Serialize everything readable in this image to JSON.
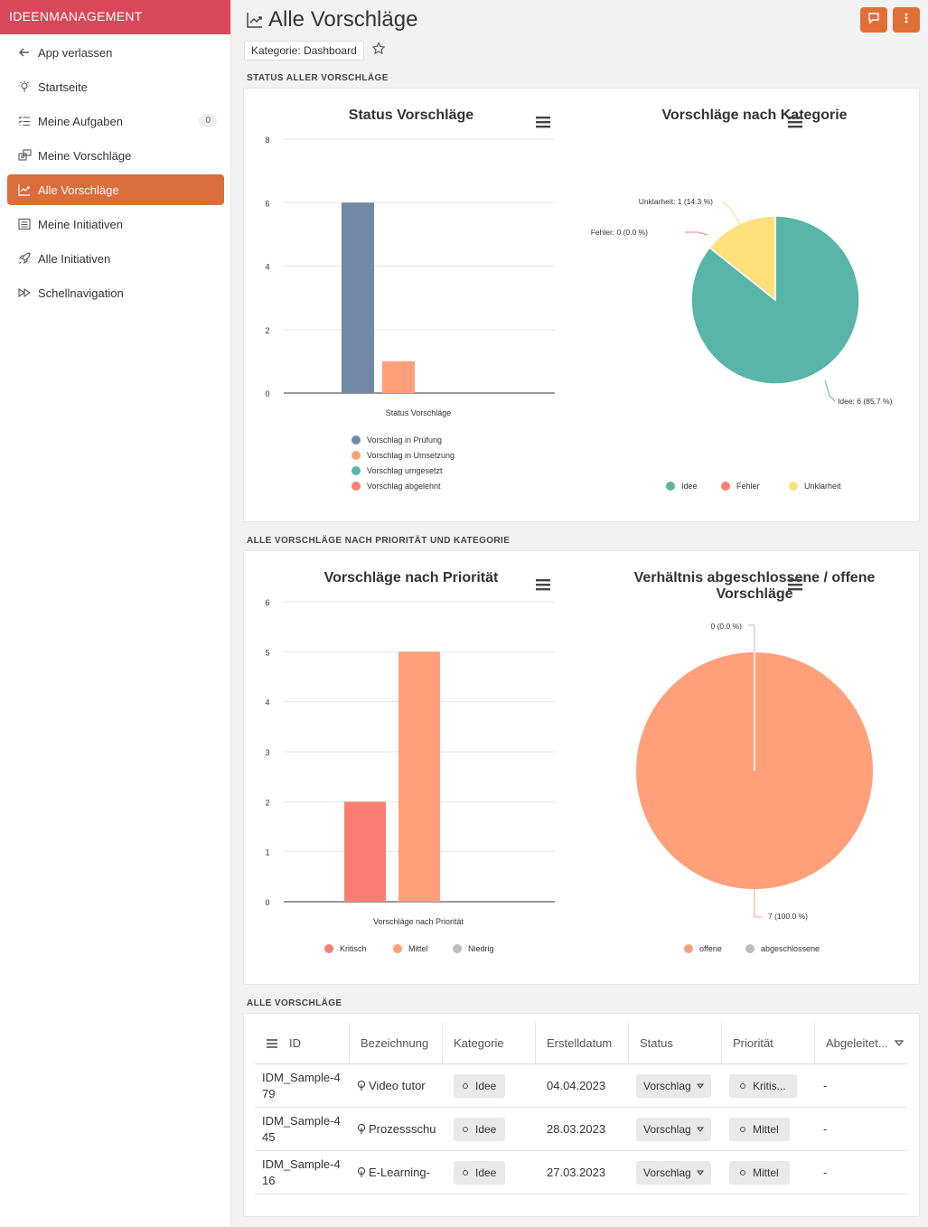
{
  "app": {
    "name": "IDEENMANAGEMENT"
  },
  "sidebar": {
    "items": [
      {
        "label": "App verlassen",
        "icon": "arrow-left-icon"
      },
      {
        "label": "Startseite",
        "icon": "lightbulb-icon"
      },
      {
        "label": "Meine Aufgaben",
        "icon": "tasks-icon",
        "badge": "0"
      },
      {
        "label": "Meine Vorschläge",
        "icon": "suggestions-icon"
      },
      {
        "label": "Alle Vorschläge",
        "icon": "chart-line-icon",
        "active": true
      },
      {
        "label": "Meine Initiativen",
        "icon": "list-icon"
      },
      {
        "label": "Alle Initiativen",
        "icon": "rocket-icon"
      },
      {
        "label": "Schellnavigation",
        "icon": "fast-forward-icon"
      }
    ]
  },
  "header": {
    "title": "Alle Vorschläge",
    "category_chip": "Kategorie: Dashboard"
  },
  "sections": {
    "status": "STATUS ALLER VORSCHLÄGE",
    "priority": "ALLE VORSCHLÄGE NACH PRIORITÄT UND KATEGORIE",
    "all": "ALLE VORSCHLÄGE"
  },
  "colors": {
    "accent": "#db6d3c",
    "brand": "#d9475b",
    "blue": "#7189a5",
    "orange": "#ffa07a",
    "teal": "#58b5a8",
    "red": "#fa7f72",
    "yellow": "#ffe07a",
    "gray": "#bdbdbd"
  },
  "chart_data": [
    {
      "type": "bar",
      "title": "Status Vorschläge",
      "xlabel": "Status Vorschläge",
      "ylim": [
        0,
        8
      ],
      "yticks": [
        "0",
        "2",
        "4",
        "6",
        "8"
      ],
      "series": [
        {
          "name": "Vorschlag in Prüfung",
          "values": [
            6
          ],
          "color": "#7189a5"
        },
        {
          "name": "Vorschlag in Umsetzung",
          "values": [
            1
          ],
          "color": "#ffa07a"
        },
        {
          "name": "Vorschlag umgesetzt",
          "values": [
            0
          ],
          "color": "#58b5a8"
        },
        {
          "name": "Vorschlag abgelehnt",
          "values": [
            0
          ],
          "color": "#fa7f72"
        }
      ],
      "legend": "bottom"
    },
    {
      "type": "pie",
      "title": "Vorschläge nach Kategorie",
      "slices": [
        {
          "name": "Idee",
          "value": 6,
          "label": "Idee: 6 (85.7 %)",
          "color": "#58b5a8"
        },
        {
          "name": "Fehler",
          "value": 0,
          "label": "Fehler: 0 (0.0 %)",
          "color": "#fa7f72"
        },
        {
          "name": "Unklarheit",
          "value": 1,
          "label": "Unklarheit: 1 (14.3 %)",
          "color": "#ffe07a"
        }
      ],
      "legend": "bottom"
    },
    {
      "type": "bar",
      "title": "Vorschläge nach Priorität",
      "xlabel": "Vorschläge nach Priorität",
      "ylim": [
        0,
        6
      ],
      "yticks": [
        "0",
        "1",
        "2",
        "3",
        "4",
        "5",
        "6"
      ],
      "series": [
        {
          "name": "Kritisch",
          "values": [
            2
          ],
          "color": "#fa7f72"
        },
        {
          "name": "Mittel",
          "values": [
            5
          ],
          "color": "#ffa07a"
        },
        {
          "name": "Niedrig",
          "values": [
            0
          ],
          "color": "#bdbdbd"
        }
      ],
      "legend": "bottom"
    },
    {
      "type": "pie",
      "title_lines": [
        "Verhältnis abgeschlossene / offene",
        "Vorschläge"
      ],
      "slices": [
        {
          "name": "offene",
          "value": 7,
          "label": "7 (100.0 %)",
          "color": "#ffa07a"
        },
        {
          "name": "abgeschlossene",
          "value": 0,
          "label": "0 (0.0 %)",
          "color": "#bdbdbd"
        }
      ],
      "legend": "bottom"
    }
  ],
  "table": {
    "columns": [
      "ID",
      "Bezeichnung",
      "Kategorie",
      "Erstelldatum",
      "Status",
      "Priorität",
      "Abgeleitet..."
    ],
    "rows": [
      {
        "id1": "IDM_Sample-4",
        "id2": "79",
        "name": "Video tutor",
        "category": "Idee",
        "date": "04.04.2023",
        "status": "Vorschlag",
        "priority": "Kritis...",
        "derived": "-"
      },
      {
        "id1": "IDM_Sample-4",
        "id2": "45",
        "name": "Prozessschu",
        "category": "Idee",
        "date": "28.03.2023",
        "status": "Vorschlag",
        "priority": "Mittel",
        "derived": "-"
      },
      {
        "id1": "IDM_Sample-4",
        "id2": "16",
        "name": "E-Learning-",
        "category": "Idee",
        "date": "27.03.2023",
        "status": "Vorschlag",
        "priority": "Mittel",
        "derived": "-"
      }
    ]
  }
}
